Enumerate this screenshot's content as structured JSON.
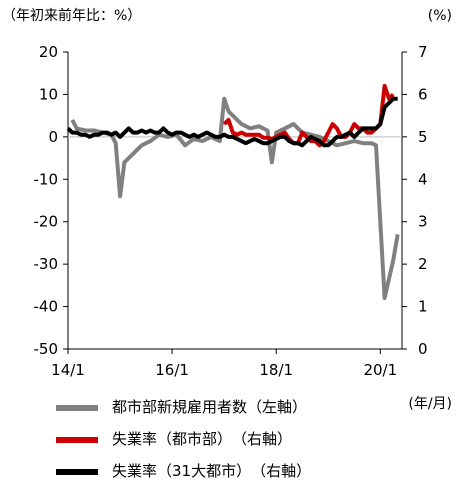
{
  "header": {
    "left_note": "（年初来前年比：%）",
    "right_note": "(%)",
    "x_unit": "(年/月)"
  },
  "chart_data": {
    "type": "line",
    "title": "",
    "x_ticks": [
      "14/1",
      "16/1",
      "18/1",
      "20/1"
    ],
    "x_range": [
      "2014-01",
      "2020-06"
    ],
    "left_axis": {
      "ticks": [
        20,
        10,
        0,
        -10,
        -20,
        -30,
        -40,
        -50
      ],
      "ylim": [
        -50,
        20
      ]
    },
    "right_axis": {
      "ticks": [
        7,
        6,
        5,
        4,
        3,
        2,
        1,
        0
      ],
      "ylim": [
        0,
        7
      ]
    },
    "zero_line": true,
    "grid": false,
    "legend_position": "bottom",
    "series": [
      {
        "name": "都市部新規雇用者数（左軸）",
        "axis": "left",
        "color": "#808080",
        "points": [
          [
            "2014-02",
            4.0
          ],
          [
            "2014-03",
            2.0
          ],
          [
            "2014-05",
            1.5
          ],
          [
            "2014-07",
            1.5
          ],
          [
            "2014-09",
            1.0
          ],
          [
            "2014-11",
            0.5
          ],
          [
            "2014-12",
            -1.5
          ],
          [
            "2015-01",
            -14.0
          ],
          [
            "2015-02",
            -6.0
          ],
          [
            "2015-04",
            -4.0
          ],
          [
            "2015-06",
            -2.0
          ],
          [
            "2015-08",
            -1.0
          ],
          [
            "2015-10",
            0.5
          ],
          [
            "2015-12",
            0.0
          ],
          [
            "2016-02",
            0.5
          ],
          [
            "2016-04",
            -2.0
          ],
          [
            "2016-06",
            -0.5
          ],
          [
            "2016-08",
            -1.0
          ],
          [
            "2016-10",
            0.0
          ],
          [
            "2016-12",
            -1.0
          ],
          [
            "2017-01",
            9.0
          ],
          [
            "2017-02",
            6.0
          ],
          [
            "2017-03",
            5.0
          ],
          [
            "2017-04",
            4.0
          ],
          [
            "2017-05",
            3.0
          ],
          [
            "2017-07",
            2.0
          ],
          [
            "2017-09",
            2.5
          ],
          [
            "2017-11",
            1.5
          ],
          [
            "2017-12",
            -6.0
          ],
          [
            "2018-01",
            1.0
          ],
          [
            "2018-03",
            2.0
          ],
          [
            "2018-05",
            3.0
          ],
          [
            "2018-07",
            1.0
          ],
          [
            "2018-09",
            0.5
          ],
          [
            "2018-11",
            0.0
          ],
          [
            "2019-01",
            -1.0
          ],
          [
            "2019-03",
            -2.0
          ],
          [
            "2019-05",
            -1.5
          ],
          [
            "2019-07",
            -1.0
          ],
          [
            "2019-09",
            -1.5
          ],
          [
            "2019-11",
            -1.5
          ],
          [
            "2019-12",
            -2.0
          ],
          [
            "2020-02",
            -38.0
          ],
          [
            "2020-04",
            -29.0
          ],
          [
            "2020-05",
            -23.0
          ]
        ]
      },
      {
        "name": "失業率（都市部）　（右軸）",
        "axis": "right",
        "color": "#cc0000",
        "points": [
          [
            "2017-01",
            5.3
          ],
          [
            "2017-02",
            5.4
          ],
          [
            "2017-03",
            5.1
          ],
          [
            "2017-04",
            5.05
          ],
          [
            "2017-05",
            5.1
          ],
          [
            "2017-06",
            5.05
          ],
          [
            "2017-07",
            5.05
          ],
          [
            "2017-08",
            5.05
          ],
          [
            "2017-09",
            5.05
          ],
          [
            "2017-10",
            4.98
          ],
          [
            "2017-11",
            4.98
          ],
          [
            "2017-12",
            4.95
          ],
          [
            "2018-01",
            5.0
          ],
          [
            "2018-02",
            5.05
          ],
          [
            "2018-03",
            5.1
          ],
          [
            "2018-04",
            4.95
          ],
          [
            "2018-05",
            4.85
          ],
          [
            "2018-06",
            4.85
          ],
          [
            "2018-07",
            5.1
          ],
          [
            "2018-08",
            5.0
          ],
          [
            "2018-09",
            4.9
          ],
          [
            "2018-10",
            4.9
          ],
          [
            "2018-11",
            4.8
          ],
          [
            "2018-12",
            4.9
          ],
          [
            "2019-01",
            5.1
          ],
          [
            "2019-02",
            5.3
          ],
          [
            "2019-03",
            5.2
          ],
          [
            "2019-04",
            5.0
          ],
          [
            "2019-05",
            5.0
          ],
          [
            "2019-06",
            5.1
          ],
          [
            "2019-07",
            5.3
          ],
          [
            "2019-08",
            5.2
          ],
          [
            "2019-09",
            5.2
          ],
          [
            "2019-10",
            5.1
          ],
          [
            "2019-11",
            5.1
          ],
          [
            "2019-12",
            5.2
          ],
          [
            "2020-01",
            5.3
          ],
          [
            "2020-02",
            6.2
          ],
          [
            "2020-03",
            5.9
          ],
          [
            "2020-04",
            6.0
          ]
        ]
      },
      {
        "name": "失業率（31大都市）　（右軸）",
        "axis": "right",
        "color": "#000000",
        "points": [
          [
            "2014-01",
            5.2
          ],
          [
            "2014-02",
            5.1
          ],
          [
            "2014-03",
            5.1
          ],
          [
            "2014-04",
            5.05
          ],
          [
            "2014-05",
            5.05
          ],
          [
            "2014-06",
            5.0
          ],
          [
            "2014-07",
            5.05
          ],
          [
            "2014-08",
            5.05
          ],
          [
            "2014-09",
            5.1
          ],
          [
            "2014-10",
            5.1
          ],
          [
            "2014-11",
            5.05
          ],
          [
            "2014-12",
            5.1
          ],
          [
            "2015-01",
            5.0
          ],
          [
            "2015-02",
            5.1
          ],
          [
            "2015-03",
            5.2
          ],
          [
            "2015-04",
            5.1
          ],
          [
            "2015-05",
            5.1
          ],
          [
            "2015-06",
            5.15
          ],
          [
            "2015-07",
            5.1
          ],
          [
            "2015-08",
            5.15
          ],
          [
            "2015-09",
            5.1
          ],
          [
            "2015-10",
            5.1
          ],
          [
            "2015-11",
            5.2
          ],
          [
            "2015-12",
            5.1
          ],
          [
            "2016-01",
            5.05
          ],
          [
            "2016-02",
            5.1
          ],
          [
            "2016-03",
            5.1
          ],
          [
            "2016-04",
            5.05
          ],
          [
            "2016-05",
            5.0
          ],
          [
            "2016-06",
            5.05
          ],
          [
            "2016-07",
            5.0
          ],
          [
            "2016-08",
            5.05
          ],
          [
            "2016-09",
            5.1
          ],
          [
            "2016-10",
            5.05
          ],
          [
            "2016-11",
            5.0
          ],
          [
            "2016-12",
            5.0
          ],
          [
            "2017-01",
            5.05
          ],
          [
            "2017-02",
            5.0
          ],
          [
            "2017-03",
            5.0
          ],
          [
            "2017-04",
            4.95
          ],
          [
            "2017-05",
            4.9
          ],
          [
            "2017-06",
            4.85
          ],
          [
            "2017-07",
            4.9
          ],
          [
            "2017-08",
            4.95
          ],
          [
            "2017-09",
            4.9
          ],
          [
            "2017-10",
            4.85
          ],
          [
            "2017-11",
            4.85
          ],
          [
            "2017-12",
            4.9
          ],
          [
            "2018-01",
            4.95
          ],
          [
            "2018-02",
            5.0
          ],
          [
            "2018-03",
            5.0
          ],
          [
            "2018-04",
            4.9
          ],
          [
            "2018-05",
            4.85
          ],
          [
            "2018-06",
            4.85
          ],
          [
            "2018-07",
            4.8
          ],
          [
            "2018-08",
            4.9
          ],
          [
            "2018-09",
            5.0
          ],
          [
            "2018-10",
            4.95
          ],
          [
            "2018-11",
            4.9
          ],
          [
            "2018-12",
            4.8
          ],
          [
            "2019-01",
            4.8
          ],
          [
            "2019-02",
            4.9
          ],
          [
            "2019-03",
            5.0
          ],
          [
            "2019-04",
            5.0
          ],
          [
            "2019-05",
            5.05
          ],
          [
            "2019-06",
            5.1
          ],
          [
            "2019-07",
            5.0
          ],
          [
            "2019-08",
            5.1
          ],
          [
            "2019-09",
            5.2
          ],
          [
            "2019-10",
            5.2
          ],
          [
            "2019-11",
            5.2
          ],
          [
            "2019-12",
            5.2
          ],
          [
            "2020-01",
            5.3
          ],
          [
            "2020-02",
            5.7
          ],
          [
            "2020-03",
            5.8
          ],
          [
            "2020-04",
            5.9
          ],
          [
            "2020-05",
            5.9
          ]
        ]
      }
    ]
  }
}
